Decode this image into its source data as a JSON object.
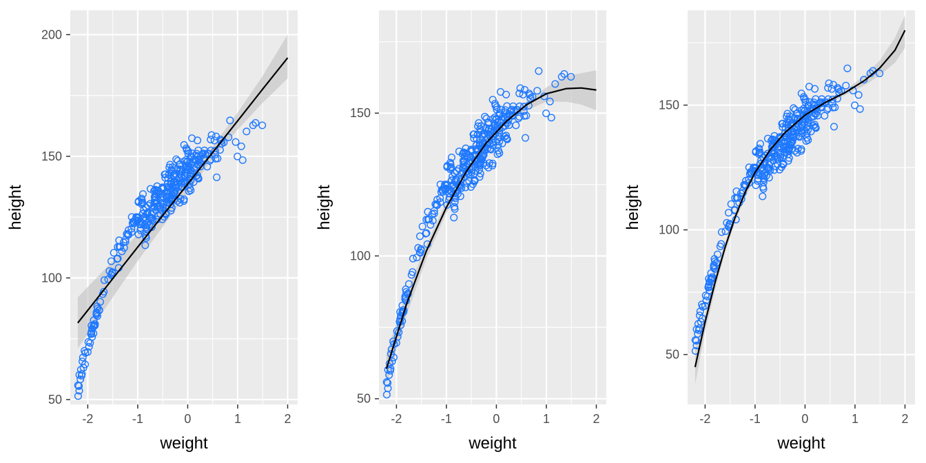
{
  "colors": {
    "panel_background": "#ebebeb",
    "grid": "#ffffff",
    "points": "#1e78ff",
    "fit_line": "#000000",
    "ribbon": "#bdbdbd",
    "tick_text": "#4d4d4d"
  },
  "chart_data": [
    {
      "type": "scatter",
      "fit": "linear",
      "xlabel": "weight",
      "ylabel": "height",
      "xlim": [
        -2.35,
        2.2
      ],
      "ylim": [
        48,
        210
      ],
      "xticks": [
        -2,
        -1,
        0,
        1,
        2
      ],
      "xtick_labels": [
        "-2",
        "-1",
        "0",
        "1",
        "2"
      ],
      "yticks": [
        50,
        100,
        150,
        200
      ],
      "ytick_labels": [
        "50",
        "100",
        "150",
        "200"
      ],
      "grid": true,
      "fit_line": {
        "x": [
          -2.2,
          -1.5,
          -1.0,
          -0.5,
          0.0,
          0.5,
          1.0,
          1.5,
          2.0
        ],
        "y": [
          81.5,
          99.7,
          112.7,
          125.7,
          138.6,
          151.6,
          164.6,
          177.6,
          190.5
        ]
      },
      "ribbon": {
        "x": [
          -2.2,
          -1.5,
          -1.0,
          -0.5,
          0.0,
          0.5,
          1.0,
          1.5,
          2.0
        ],
        "lower": [
          71,
          92,
          107,
          121,
          135,
          149,
          161,
          172,
          182
        ],
        "upper": [
          92,
          107,
          118,
          130,
          142,
          154,
          168,
          183,
          200
        ]
      }
    },
    {
      "type": "scatter",
      "fit": "quadratic",
      "xlabel": "weight",
      "ylabel": "height",
      "xlim": [
        -2.35,
        2.2
      ],
      "ylim": [
        48,
        186
      ],
      "xticks": [
        -2,
        -1,
        0,
        1,
        2
      ],
      "xtick_labels": [
        "-2",
        "-1",
        "0",
        "1",
        "2"
      ],
      "yticks": [
        50,
        100,
        150
      ],
      "ytick_labels": [
        "50",
        "100",
        "150"
      ],
      "grid": true,
      "fit_line": {
        "x": [
          -2.2,
          -1.8,
          -1.4,
          -1.0,
          -0.6,
          -0.2,
          0.2,
          0.6,
          1.0,
          1.4,
          1.7,
          2.0
        ],
        "y": [
          60.5,
          83.0,
          101.8,
          117.0,
          129.6,
          139.6,
          147.1,
          152.9,
          156.8,
          158.6,
          158.8,
          158.1
        ]
      },
      "ribbon": {
        "x": [
          -2.2,
          -1.8,
          -1.4,
          -1.0,
          -0.6,
          -0.2,
          0.2,
          0.6,
          1.0,
          1.4,
          1.7,
          2.0
        ],
        "lower": [
          55,
          79,
          99,
          115,
          128,
          138,
          146,
          151,
          154,
          154,
          153,
          151
        ],
        "upper": [
          66,
          87,
          104,
          119,
          131,
          141,
          148,
          154,
          159,
          163,
          164,
          165
        ]
      }
    },
    {
      "type": "scatter",
      "fit": "cubic",
      "xlabel": "weight",
      "ylabel": "height",
      "xlim": [
        -2.35,
        2.2
      ],
      "ylim": [
        30,
        188
      ],
      "xticks": [
        -2,
        -1,
        0,
        1,
        2
      ],
      "xtick_labels": [
        "-2",
        "-1",
        "0",
        "1",
        "2"
      ],
      "yticks": [
        50,
        100,
        150
      ],
      "ytick_labels": [
        "50",
        "100",
        "150"
      ],
      "grid": true,
      "fit_line": {
        "x": [
          -2.2,
          -2.0,
          -1.8,
          -1.6,
          -1.4,
          -1.2,
          -1.0,
          -0.7,
          -0.4,
          0.0,
          0.4,
          0.8,
          1.2,
          1.5,
          1.8,
          2.0
        ],
        "y": [
          45.0,
          63.0,
          79.0,
          93.0,
          105.0,
          115.0,
          123.0,
          132.0,
          139.0,
          146.0,
          151.0,
          155.0,
          160.0,
          165.0,
          172.0,
          180.0
        ]
      },
      "ribbon": {
        "x": [
          -2.2,
          -2.0,
          -1.8,
          -1.6,
          -1.4,
          -1.2,
          -1.0,
          -0.7,
          -0.4,
          0.0,
          0.4,
          0.8,
          1.2,
          1.5,
          1.8,
          2.0
        ],
        "lower": [
          38,
          59,
          76,
          91,
          103,
          113,
          121,
          130,
          138,
          145,
          150,
          154,
          158,
          162,
          167,
          173
        ],
        "upper": [
          52,
          67,
          82,
          95,
          107,
          117,
          125,
          134,
          141,
          147,
          152,
          156,
          162,
          168,
          177,
          186
        ]
      }
    }
  ]
}
